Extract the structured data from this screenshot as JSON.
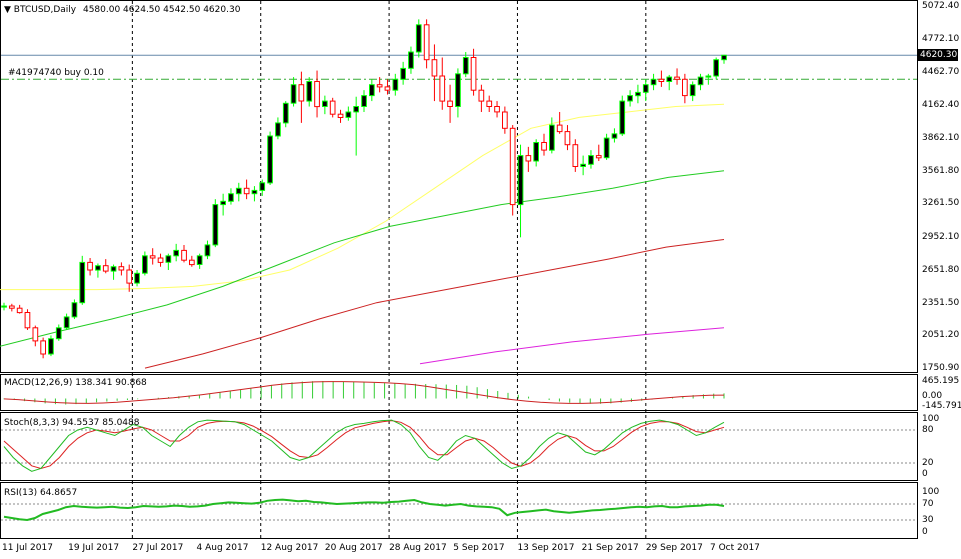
{
  "header": {
    "symbol": "BTCUSD,Daily",
    "ohlc": "4580.00 4624.50 4542.50 4620.30",
    "order_label": "#41974740 buy 0.10"
  },
  "price_tag": "4620.30",
  "colors": {
    "bull": "#00ff00",
    "bear": "#ff0000",
    "candle_body_bull": "#000000",
    "ma_fast": "#ffff66",
    "ma_mid": "#22cc22",
    "ma_slow": "#cc2222",
    "ma_long": "#dd22dd",
    "macd_hist": "#33cc33",
    "macd_signal": "#cc2222",
    "stoch_main": "#22bb22",
    "stoch_signal": "#dd2222",
    "rsi": "#22bb22",
    "order_line": "#33aa33",
    "last_line": "#6688aa"
  },
  "chart_data": {
    "type": "candlestick",
    "x_labels": [
      "11 Jul 2017",
      "19 Jul 2017",
      "27 Jul 2017",
      "4 Aug 2017",
      "12 Aug 2017",
      "20 Aug 2017",
      "28 Aug 2017",
      "5 Sep 2017",
      "13 Sep 2017",
      "21 Sep 2017",
      "29 Sep 2017",
      "7 Oct 2017"
    ],
    "y_ticks": [
      "5072.40",
      "4772.10",
      "4462.70",
      "4162.40",
      "3862.10",
      "3561.80",
      "3261.50",
      "2952.10",
      "2651.80",
      "2351.50",
      "2051.20",
      "1750.90"
    ],
    "y_tick_values": [
      5072.4,
      4772.1,
      4462.7,
      4162.4,
      3862.1,
      3561.8,
      3261.5,
      2952.1,
      2651.8,
      2351.5,
      2051.2,
      1750.9
    ],
    "ylim": [
      1750.9,
      5072.4
    ],
    "last_price": 4620.3,
    "order_price": 4400,
    "candles": [
      [
        2310,
        2350,
        2280,
        2320
      ],
      [
        2320,
        2340,
        2270,
        2300
      ],
      [
        2300,
        2330,
        2250,
        2260
      ],
      [
        2260,
        2290,
        2100,
        2120
      ],
      [
        2120,
        2140,
        1950,
        2000
      ],
      [
        2000,
        2030,
        1840,
        1880
      ],
      [
        1880,
        2050,
        1860,
        2020
      ],
      [
        2020,
        2150,
        2000,
        2120
      ],
      [
        2120,
        2250,
        2100,
        2220
      ],
      [
        2220,
        2380,
        2200,
        2350
      ],
      [
        2350,
        2780,
        2330,
        2720
      ],
      [
        2720,
        2760,
        2600,
        2650
      ],
      [
        2650,
        2710,
        2580,
        2690
      ],
      [
        2690,
        2750,
        2620,
        2640
      ],
      [
        2640,
        2700,
        2560,
        2680
      ],
      [
        2680,
        2720,
        2600,
        2650
      ],
      [
        2650,
        2700,
        2450,
        2530
      ],
      [
        2530,
        2650,
        2500,
        2620
      ],
      [
        2620,
        2820,
        2600,
        2780
      ],
      [
        2780,
        2850,
        2700,
        2760
      ],
      [
        2760,
        2800,
        2680,
        2720
      ],
      [
        2720,
        2800,
        2650,
        2780
      ],
      [
        2780,
        2890,
        2730,
        2830
      ],
      [
        2830,
        2880,
        2720,
        2740
      ],
      [
        2740,
        2780,
        2680,
        2700
      ],
      [
        2700,
        2800,
        2660,
        2780
      ],
      [
        2780,
        2920,
        2750,
        2880
      ],
      [
        2880,
        3300,
        2860,
        3250
      ],
      [
        3250,
        3350,
        3150,
        3280
      ],
      [
        3280,
        3400,
        3250,
        3350
      ],
      [
        3350,
        3450,
        3280,
        3400
      ],
      [
        3400,
        3480,
        3300,
        3350
      ],
      [
        3350,
        3420,
        3280,
        3380
      ],
      [
        3380,
        3480,
        3330,
        3450
      ],
      [
        3450,
        3920,
        3430,
        3880
      ],
      [
        3880,
        4050,
        3850,
        4000
      ],
      [
        4000,
        4200,
        3960,
        4180
      ],
      [
        4180,
        4420,
        4150,
        4350
      ],
      [
        4350,
        4470,
        4000,
        4200
      ],
      [
        4200,
        4420,
        4150,
        4380
      ],
      [
        4380,
        4480,
        4050,
        4150
      ],
      [
        4150,
        4250,
        4080,
        4200
      ],
      [
        4200,
        4230,
        4050,
        4080
      ],
      [
        4080,
        4120,
        4000,
        4050
      ],
      [
        4050,
        4150,
        4020,
        4100
      ],
      [
        4100,
        4240,
        3700,
        4150
      ],
      [
        4150,
        4300,
        4100,
        4250
      ],
      [
        4250,
        4400,
        4200,
        4350
      ],
      [
        4350,
        4420,
        4280,
        4330
      ],
      [
        4330,
        4400,
        4260,
        4300
      ],
      [
        4300,
        4450,
        4250,
        4400
      ],
      [
        4400,
        4560,
        4350,
        4500
      ],
      [
        4500,
        4700,
        4450,
        4650
      ],
      [
        4650,
        4950,
        4600,
        4900
      ],
      [
        4900,
        4950,
        4500,
        4580
      ],
      [
        4580,
        4720,
        4200,
        4430
      ],
      [
        4430,
        4600,
        4120,
        4200
      ],
      [
        4200,
        4350,
        4000,
        4150
      ],
      [
        4150,
        4500,
        4050,
        4450
      ],
      [
        4450,
        4650,
        4420,
        4600
      ],
      [
        4600,
        4680,
        4250,
        4300
      ],
      [
        4300,
        4350,
        4100,
        4200
      ],
      [
        4200,
        4250,
        4100,
        4150
      ],
      [
        4150,
        4200,
        4050,
        4100
      ],
      [
        4100,
        4150,
        3900,
        3950
      ],
      [
        3950,
        3980,
        3150,
        3250
      ],
      [
        3250,
        3800,
        2950,
        3700
      ],
      [
        3700,
        3780,
        3550,
        3650
      ],
      [
        3650,
        3850,
        3600,
        3820
      ],
      [
        3820,
        3900,
        3700,
        3750
      ],
      [
        3750,
        4050,
        3720,
        3980
      ],
      [
        3980,
        4100,
        3900,
        3920
      ],
      [
        3920,
        3980,
        3750,
        3800
      ],
      [
        3800,
        3850,
        3550,
        3600
      ],
      [
        3600,
        3700,
        3520,
        3620
      ],
      [
        3620,
        3750,
        3580,
        3700
      ],
      [
        3700,
        3800,
        3650,
        3680
      ],
      [
        3680,
        3900,
        3660,
        3860
      ],
      [
        3860,
        3950,
        3820,
        3900
      ],
      [
        3900,
        4250,
        3880,
        4200
      ],
      [
        4200,
        4300,
        4150,
        4250
      ],
      [
        4250,
        4350,
        4180,
        4280
      ],
      [
        4280,
        4400,
        4200,
        4350
      ],
      [
        4350,
        4450,
        4300,
        4400
      ],
      [
        4400,
        4480,
        4330,
        4380
      ],
      [
        4380,
        4440,
        4300,
        4420
      ],
      [
        4420,
        4500,
        4350,
        4400
      ],
      [
        4400,
        4450,
        4180,
        4250
      ],
      [
        4250,
        4380,
        4200,
        4350
      ],
      [
        4350,
        4450,
        4300,
        4420
      ],
      [
        4420,
        4450,
        4350,
        4430
      ],
      [
        4430,
        4600,
        4400,
        4580
      ],
      [
        4580,
        4624.5,
        4542.5,
        4620.3
      ]
    ],
    "moving_averages": [
      {
        "values": [
          2470,
          2470,
          2470,
          2480,
          2500,
          2550,
          2650,
          2850,
          3100,
          3400,
          3700,
          3950,
          4050,
          4100,
          4150,
          4170
        ]
      },
      {
        "values": [
          1950,
          2080,
          2200,
          2330,
          2500,
          2700,
          2900,
          3050,
          3150,
          3250,
          3320,
          3400,
          3500,
          3560
        ]
      },
      {
        "values": [
          1750,
          1880,
          2030,
          2200,
          2350,
          2450,
          2550,
          2650,
          2750,
          2860,
          2930
        ]
      },
      {
        "values": [
          1790,
          1900,
          1990,
          2060,
          2120
        ]
      }
    ]
  },
  "macd": {
    "label": "MACD(12,26,9) 138.341 90.868",
    "y_ticks": [
      "465.195",
      "0.00",
      "-145.791"
    ],
    "y_tick_values": [
      465.195,
      0,
      -145.791
    ],
    "histogram": [
      -20,
      -40,
      -70,
      -100,
      -130,
      -150,
      -160,
      -150,
      -130,
      -100,
      -80,
      -60,
      -40,
      -20,
      0,
      20,
      40,
      60,
      80,
      100,
      120,
      160,
      200,
      240,
      280,
      320,
      360,
      400,
      430,
      450,
      460,
      465,
      460,
      450,
      440,
      430,
      420,
      410,
      400,
      395,
      390,
      385,
      380,
      370,
      360,
      340,
      300,
      250,
      200,
      150,
      100,
      50,
      0,
      -40,
      -80,
      -110,
      -130,
      -140,
      -140,
      -130,
      -110,
      -90,
      -60,
      -30,
      0,
      30,
      60,
      90,
      110,
      130,
      138
    ],
    "signal": [
      -10,
      -30,
      -60,
      -90,
      -110,
      -125,
      -130,
      -120,
      -100,
      -70,
      -40,
      -10,
      20,
      60,
      100,
      150,
      200,
      250,
      300,
      350,
      390,
      420,
      440,
      450,
      450,
      440,
      430,
      420,
      400,
      370,
      320,
      260,
      200,
      140,
      80,
      20,
      -30,
      -70,
      -100,
      -120,
      -130,
      -130,
      -120,
      -100,
      -70,
      -40,
      -10,
      20,
      50,
      70,
      85,
      91
    ]
  },
  "stoch": {
    "label": "Stoch(8,3,3) 94.5537 85.0488",
    "y_ticks": [
      "100",
      "80",
      "20",
      "0"
    ],
    "y_tick_values": [
      100,
      80,
      20,
      0
    ],
    "main": [
      50,
      30,
      15,
      5,
      10,
      30,
      50,
      70,
      80,
      85,
      80,
      75,
      70,
      80,
      90,
      85,
      70,
      60,
      50,
      70,
      85,
      95,
      98,
      97,
      96,
      95,
      90,
      80,
      70,
      60,
      45,
      30,
      25,
      30,
      45,
      60,
      75,
      85,
      90,
      92,
      95,
      97,
      98,
      90,
      75,
      50,
      30,
      25,
      40,
      60,
      70,
      65,
      50,
      35,
      20,
      10,
      15,
      30,
      50,
      65,
      75,
      70,
      55,
      40,
      35,
      45,
      60,
      75,
      85,
      92,
      96,
      98,
      95,
      90,
      80,
      70,
      75,
      85,
      94
    ],
    "signal": [
      60,
      45,
      30,
      15,
      10,
      15,
      30,
      50,
      65,
      75,
      80,
      78,
      75,
      78,
      82,
      85,
      80,
      70,
      60,
      60,
      70,
      85,
      92,
      95,
      96,
      95,
      93,
      87,
      78,
      68,
      55,
      42,
      32,
      30,
      35,
      48,
      62,
      75,
      84,
      88,
      92,
      95,
      97,
      94,
      85,
      68,
      48,
      35,
      35,
      48,
      60,
      65,
      60,
      48,
      33,
      20,
      14,
      20,
      33,
      50,
      63,
      70,
      65,
      52,
      42,
      42,
      50,
      63,
      76,
      86,
      92,
      95,
      95,
      92,
      85,
      77,
      75,
      80,
      85
    ]
  },
  "rsi": {
    "label": "RSI(13) 64.8657",
    "y_ticks": [
      "100",
      "70",
      "30",
      "0"
    ],
    "y_tick_values": [
      100,
      70,
      30,
      0
    ],
    "levels": [
      70,
      30
    ],
    "values": [
      38,
      35,
      32,
      30,
      35,
      45,
      50,
      55,
      62,
      65,
      63,
      62,
      61,
      62,
      63,
      61,
      60,
      62,
      65,
      64,
      63,
      64,
      66,
      65,
      63,
      64,
      66,
      70,
      72,
      74,
      73,
      72,
      71,
      73,
      78,
      80,
      81,
      79,
      77,
      78,
      75,
      74,
      72,
      70,
      71,
      72,
      73,
      74,
      74,
      73,
      75,
      76,
      78,
      80,
      74,
      70,
      68,
      66,
      68,
      70,
      66,
      64,
      63,
      62,
      58,
      42,
      48,
      50,
      52,
      54,
      56,
      52,
      50,
      48,
      50,
      52,
      54,
      55,
      57,
      58,
      60,
      62,
      63,
      62,
      64,
      65,
      62,
      62,
      64,
      65,
      66,
      68,
      68,
      65
    ]
  }
}
